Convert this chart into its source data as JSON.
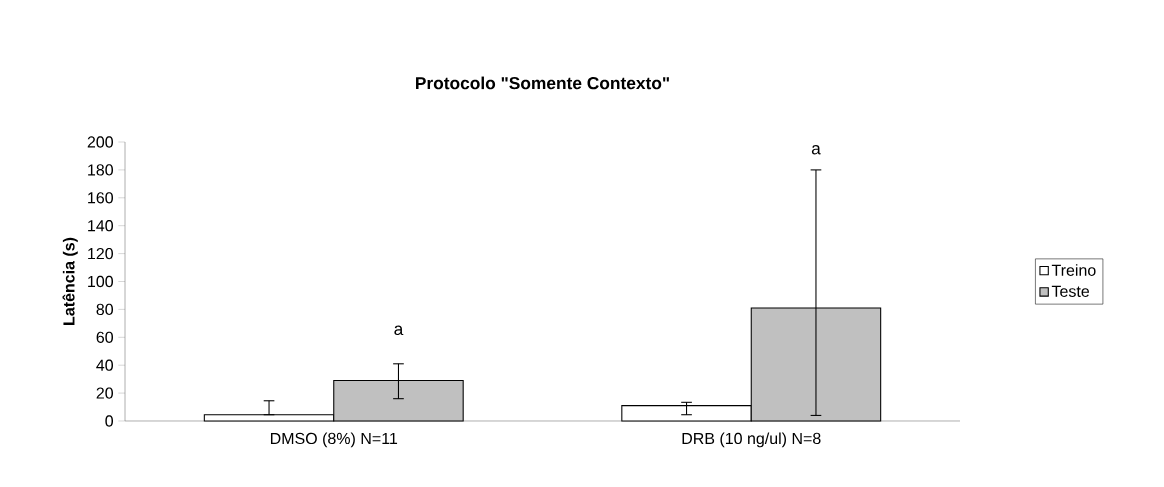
{
  "chart_data": {
    "type": "bar",
    "title": "Protocolo \"Somente Contexto\"",
    "ylabel": "Latência (s)",
    "categories": [
      "DMSO (8%) N=11",
      "DRB (10 ng/ul) N=8"
    ],
    "series": [
      {
        "name": "Treino",
        "color": "#ffffff",
        "values": [
          4.5,
          11
        ],
        "errors": [
          [
            4.5,
            14.5
          ],
          [
            4.5,
            13.4
          ]
        ]
      },
      {
        "name": "Teste",
        "color": "#c0c0c0",
        "values": [
          29,
          81
        ],
        "errors": [
          [
            16,
            41
          ],
          [
            4,
            180
          ]
        ]
      }
    ],
    "ylim": [
      0,
      200
    ],
    "yticks": [
      0,
      20,
      40,
      60,
      80,
      100,
      120,
      140,
      160,
      180,
      200
    ],
    "annotations": [
      "a",
      "a"
    ],
    "legend": "right",
    "grid": false
  }
}
